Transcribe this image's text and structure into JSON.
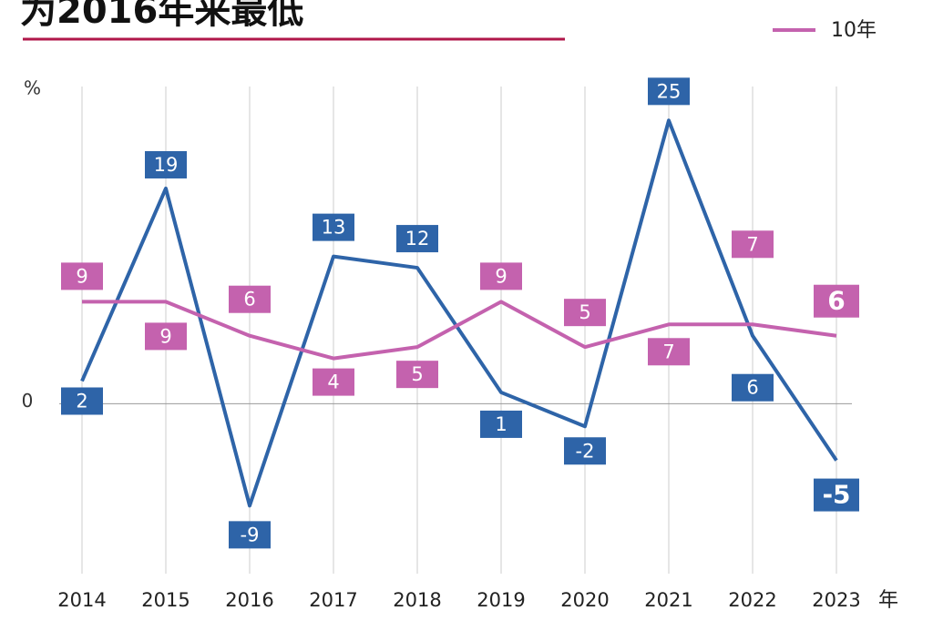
{
  "chart_data": {
    "type": "line",
    "title": "为2016年来最低",
    "y_label": "%",
    "x_unit": "年",
    "categories": [
      "2014",
      "2015",
      "2016",
      "2017",
      "2018",
      "2019",
      "2020",
      "2021",
      "2022",
      "2023"
    ],
    "series": [
      {
        "color": "#2e64a8",
        "values": [
          2,
          19,
          -9,
          13,
          12,
          1,
          -2,
          25,
          6,
          -5
        ]
      },
      {
        "name": "10年",
        "color": "#c462ae",
        "values": [
          9,
          9,
          6,
          4,
          5,
          9,
          5,
          7,
          7,
          6
        ]
      }
    ],
    "ylim": [
      -15,
      28
    ],
    "yticks": [
      0
    ],
    "grid": true
  }
}
